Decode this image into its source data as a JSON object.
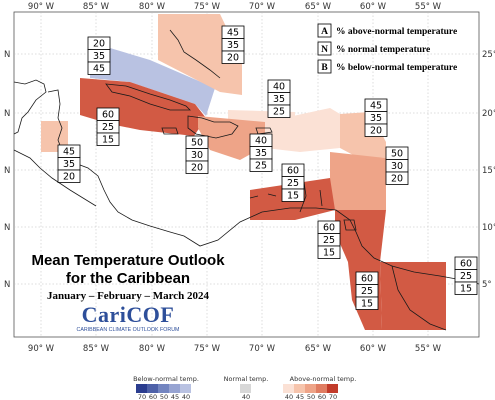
{
  "title_line1": "Mean Temperature Outlook",
  "title_line2": "for the Caribbean",
  "subtitle": "January – February – March 2024",
  "logo": {
    "name": "CariCOF",
    "tagline": "CARIBBEAN CLIMATE OUTLOOK FORUM"
  },
  "longitude_labels": [
    "90° W",
    "85° W",
    "80° W",
    "75° W",
    "70° W",
    "65° W",
    "60° W",
    "55° W"
  ],
  "latitude_labels": [
    "25° N",
    "20° N",
    "15° N",
    "10° N",
    "5° N"
  ],
  "left_tick_label": "N",
  "key": [
    {
      "letter": "A",
      "text": "% above-normal temperature"
    },
    {
      "letter": "N",
      "text": "% normal temperature"
    },
    {
      "letter": "B",
      "text": "% below-normal temperature"
    }
  ],
  "zones": [
    {
      "id": "bahamas",
      "above": "45",
      "normal": "35",
      "below": "20",
      "fill": "#f6c4ac"
    },
    {
      "id": "northwest-caribbean",
      "above": "20",
      "normal": "35",
      "below": "45",
      "fill": "#b9c2e2"
    },
    {
      "id": "cayman-jamaica",
      "above": "60",
      "normal": "25",
      "below": "15",
      "fill": "#d25a44"
    },
    {
      "id": "belize",
      "above": "45",
      "normal": "35",
      "below": "20",
      "fill": "#f6c4ac"
    },
    {
      "id": "hispaniola",
      "above": "50",
      "normal": "30",
      "below": "20",
      "fill": "#eea488"
    },
    {
      "id": "turks-caicos",
      "above": "40",
      "normal": "35",
      "below": "25",
      "fill": "#fbe1d5"
    },
    {
      "id": "puerto-rico",
      "above": "40",
      "normal": "35",
      "below": "25",
      "fill": "#fbe1d5"
    },
    {
      "id": "leeward-islands",
      "above": "45",
      "normal": "35",
      "below": "20",
      "fill": "#f6c4ac"
    },
    {
      "id": "windward-islands",
      "above": "50",
      "normal": "30",
      "below": "20",
      "fill": "#eea488"
    },
    {
      "id": "abc-islands",
      "above": "60",
      "normal": "25",
      "below": "15",
      "fill": "#d25a44"
    },
    {
      "id": "trinidad-tobago",
      "above": "60",
      "normal": "25",
      "below": "15",
      "fill": "#d25a44"
    },
    {
      "id": "guyana",
      "above": "60",
      "normal": "25",
      "below": "15",
      "fill": "#d25a44"
    },
    {
      "id": "suriname-french-guiana",
      "above": "60",
      "normal": "25",
      "below": "15",
      "fill": "#d25a44"
    }
  ],
  "colorbar": {
    "below_label": "Below-normal temp.",
    "normal_label": "Normal temp.",
    "above_label": "Above-normal temp.",
    "below_ticks": [
      "70",
      "60",
      "50",
      "45",
      "40"
    ],
    "normal_ticks": [
      "40"
    ],
    "above_ticks": [
      "40",
      "45",
      "50",
      "60",
      "70"
    ],
    "below_colors": [
      "#2b3d8f",
      "#4e61a8",
      "#7385c0",
      "#97a4d2",
      "#b9c2e2"
    ],
    "normal_color": "#d8d8d8",
    "above_colors": [
      "#fbe1d5",
      "#f6c4ac",
      "#eea488",
      "#e07d62",
      "#c23b2a"
    ]
  }
}
